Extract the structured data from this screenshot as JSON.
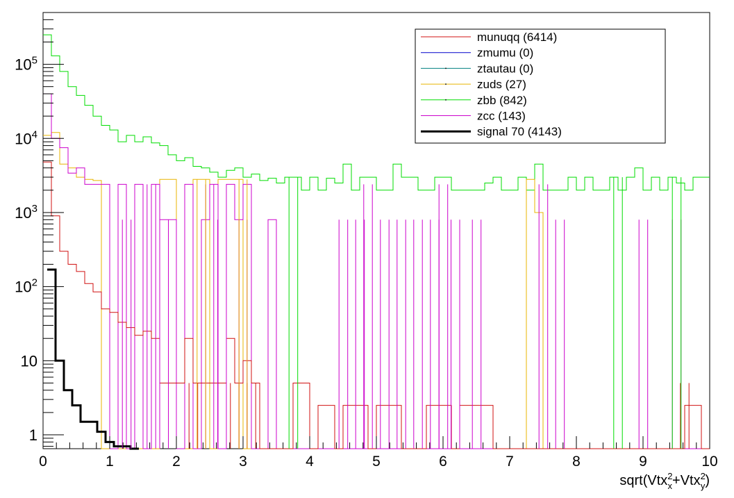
{
  "chart_data": {
    "type": "line",
    "xlabel_parts": [
      "sqrt(Vtx",
      "2",
      "x",
      "+Vtx",
      "2",
      "y",
      ")"
    ],
    "xlim": [
      0,
      10
    ],
    "ylim": [
      0.65,
      500000
    ],
    "log_y": true,
    "grid": false,
    "legend_position": "top-right",
    "bin_width": 0.125,
    "x_tick_labels": [
      "0",
      "1",
      "2",
      "3",
      "4",
      "5",
      "6",
      "7",
      "8",
      "9",
      "10"
    ],
    "y_tick_labels": [
      {
        "value": 1,
        "base": "1",
        "exp": ""
      },
      {
        "value": 10,
        "base": "10",
        "exp": ""
      },
      {
        "value": 100,
        "base": "10",
        "exp": "2"
      },
      {
        "value": 1000,
        "base": "10",
        "exp": "3"
      },
      {
        "value": 10000,
        "base": "10",
        "exp": "4"
      },
      {
        "value": 100000,
        "base": "10",
        "exp": "5"
      }
    ],
    "series": [
      {
        "name": "munuqq (6414)",
        "color": "#d01010",
        "width": 1,
        "x0": 0,
        "values": [
          4800,
          900,
          300,
          200,
          160,
          110,
          85,
          50,
          45,
          33,
          28,
          22,
          25,
          20,
          5,
          5,
          5,
          20,
          5,
          5,
          5,
          5,
          20,
          5,
          10,
          5,
          0.6,
          0.6,
          0.6,
          0.6,
          5,
          5,
          0.6,
          2.5,
          2.5,
          0.6,
          2.5,
          2.5,
          2.5,
          0.6,
          2.5,
          2.5,
          2.5,
          0.6,
          0.6,
          0.6,
          2.5,
          2.5,
          2.5,
          0.6,
          2.5,
          2.5,
          2.5,
          2.5,
          0.6,
          0.6,
          0.6,
          0.6,
          0.6,
          0.6,
          0.6,
          0.6,
          0.6,
          0.6,
          0.6,
          0.6,
          0.6,
          0.6,
          0.6,
          0.6,
          0.6,
          0.6,
          0.6,
          0.6,
          0.6,
          0.6,
          0.6,
          2.5,
          2.5,
          0.6
        ]
      },
      {
        "name": "zmumu (0)",
        "color": "#0000cc",
        "width": 1,
        "x0": 0,
        "values": []
      },
      {
        "name": "ztautau (0)",
        "color": "#008080",
        "width": 1,
        "x0": 0,
        "values": []
      },
      {
        "name": "zuds (27)",
        "color": "#e8b400",
        "width": 1,
        "x0": 0,
        "values": [
          11000,
          12000,
          4500,
          4000,
          3000,
          2800,
          2700,
          0.6,
          0.6,
          0.6,
          0.6,
          0.6,
          0.6,
          0.6,
          2800,
          2800,
          0.6,
          0.6,
          2800,
          2800,
          0.6,
          2800,
          2800,
          2800,
          0.6,
          0.6,
          0.6,
          0.6,
          0.6,
          0.6,
          0.6,
          0.6,
          0.6,
          0.6,
          0.6,
          0.6,
          0.6,
          0.6,
          0.6,
          0.6,
          0.6,
          0.6,
          0.6,
          0.6,
          0.6,
          0.6,
          0.6,
          0.6,
          0.6,
          0.6,
          0.6,
          0.6,
          0.6,
          0.6,
          0.6,
          0.6,
          0.6,
          0.6,
          2800,
          1000,
          0.6,
          0.6,
          0.6,
          0.6,
          0.6,
          0.6,
          0.6,
          0.6,
          0.6,
          0.6,
          0.6,
          0.6,
          0.6,
          0.6,
          0.6,
          0.6,
          0.6,
          0.6,
          0.6,
          0.6
        ]
      },
      {
        "name": "zbb (842)",
        "color": "#00dd00",
        "width": 1,
        "x0": 0,
        "values": [
          250000,
          130000,
          80000,
          50000,
          38000,
          28000,
          20000,
          15000,
          13000,
          9000,
          11000,
          9000,
          10500,
          8700,
          8000,
          6000,
          5000,
          5500,
          4200,
          4000,
          3500,
          3000,
          3700,
          4000,
          3000,
          3300,
          2700,
          2900,
          2500,
          3000,
          3000,
          2000,
          3000,
          2000,
          2900,
          2500,
          4500,
          2000,
          3000,
          3000,
          2000,
          2000,
          4500,
          3000,
          3000,
          2000,
          2000,
          3000,
          3000,
          2000,
          2000,
          2000,
          2000,
          2500,
          3000,
          2000,
          2000,
          3000,
          2000,
          4500,
          2000,
          2000,
          2000,
          3000,
          2000,
          3000,
          2000,
          2000,
          3000,
          2000,
          3000,
          4000,
          2000,
          3000,
          2000,
          3000,
          2500,
          2000,
          3000,
          3000
        ]
      },
      {
        "name": "zcc (143)",
        "color": "#cc00cc",
        "width": 1,
        "x0": 0,
        "values": [
          40000,
          10000,
          7500,
          3400,
          4000,
          2400,
          2400,
          2400,
          0.6,
          2400,
          0.6,
          2400,
          0.6,
          2400,
          800,
          800,
          0.6,
          2400,
          0.6,
          800,
          2400,
          0.6,
          2400,
          800,
          2400,
          0.6,
          0.6,
          800,
          0.6,
          0.6,
          0.6,
          0.6,
          0.6,
          0.6,
          0.6,
          0.6,
          0.6,
          0.6,
          0.6,
          0.6,
          0.6,
          0.6,
          0.6,
          0.6,
          0.6,
          0.6,
          0.6,
          0.6,
          0.6,
          0.6,
          0.6,
          0.6,
          0.6,
          0.6,
          0.6,
          0.6,
          0.6,
          0.6,
          0.6,
          0.6,
          0.6,
          0.6,
          0.6,
          0.6,
          0.6,
          0.6,
          0.6,
          0.6,
          0.6,
          0.6,
          0.6,
          0.6,
          0.6,
          0.6,
          0.6,
          0.6,
          0.6,
          0.6,
          0.6,
          0.6
        ]
      },
      {
        "name": "signal 70 (4143)",
        "color": "#000000",
        "width": 3,
        "x0": 0.0625,
        "values": [
          170,
          10,
          4,
          2.5,
          1.5,
          1.5,
          1.1,
          0.8,
          0.7,
          0.7,
          0.65
        ]
      }
    ],
    "spikes": [
      {
        "series": "zcc (143)",
        "color": "#cc00cc",
        "x_edges": [
          1.19,
          1.32,
          1.75,
          1.88,
          2.62,
          2.75,
          2.94,
          3.06,
          4.44,
          4.57,
          4.69,
          4.82,
          5.06,
          5.19,
          5.31,
          5.44,
          5.56,
          5.69,
          5.81,
          5.94,
          6.12,
          6.25,
          6.44,
          6.57,
          7.69,
          7.82,
          8.94,
          9.07,
          9.44,
          9.57
        ],
        "height": 800
      },
      {
        "series": "zcc (143)",
        "color": "#cc00cc",
        "x_edges": [
          1.56,
          1.69,
          2.44,
          2.56,
          4.81,
          4.94,
          5.94,
          6.07,
          7.44,
          7.57
        ],
        "height": 2400
      },
      {
        "series": "munuqq (6414)",
        "color": "#d01010",
        "x_edges": [
          2.19,
          2.32,
          2.81,
          2.94,
          3.06,
          3.19,
          9.56,
          9.69
        ],
        "height": 5
      },
      {
        "series": "zuds (27)",
        "color": "#e8b400",
        "x_edges": [
          2.31,
          2.44,
          2.94,
          3.06
        ],
        "height": 2800
      },
      {
        "series": "zbb (842)",
        "color": "#00dd00",
        "x_edges": [
          3.69,
          3.82,
          8.56,
          8.69,
          9.44,
          9.57
        ],
        "height": 3000
      }
    ]
  }
}
